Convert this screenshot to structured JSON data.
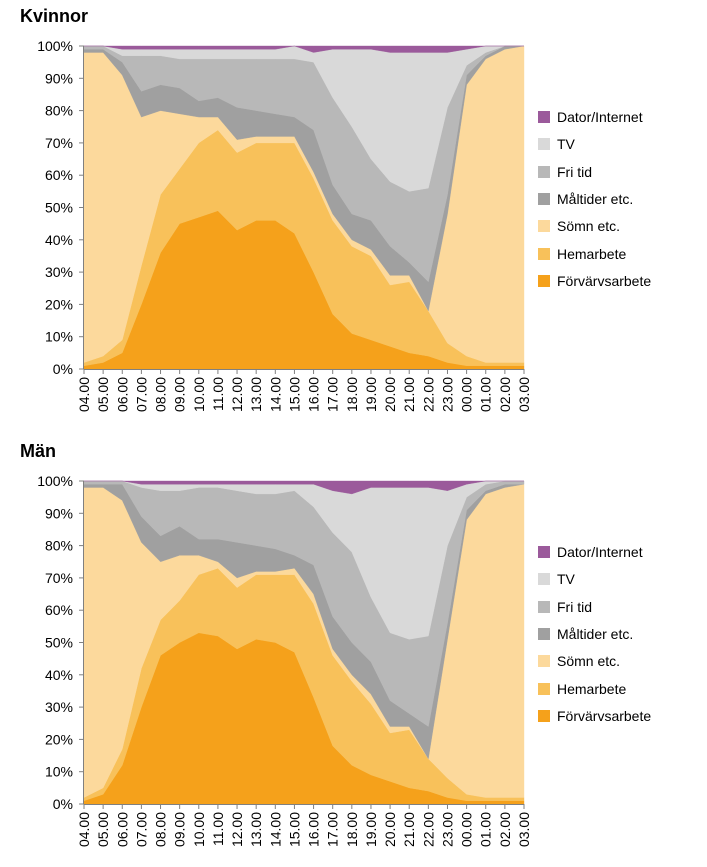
{
  "categories": [
    "Dator/Internet",
    "TV",
    "Fri tid",
    "Måltider etc.",
    "Sömn etc.",
    "Hemarbete",
    "Förvärvsarbete"
  ],
  "colors": {
    "Dator/Internet": "#9b5a9b",
    "TV": "#d9d9d9",
    "Fri tid": "#b8b8b8",
    "Måltider etc.": "#a0a0a0",
    "Sömn etc.": "#fcd99c",
    "Hemarbete": "#f8c15a",
    "Förvärvsarbete": "#f5a11b"
  },
  "chart_data": [
    {
      "type": "area",
      "stacked": true,
      "title": "Kvinnor",
      "x": [
        "04.00",
        "05.00",
        "06.00",
        "07.00",
        "08.00",
        "09.00",
        "10.00",
        "11.00",
        "12.00",
        "13.00",
        "14.00",
        "15.00",
        "16.00",
        "17.00",
        "18.00",
        "19.00",
        "20.00",
        "21.00",
        "22.00",
        "23.00",
        "00.00",
        "01.00",
        "02.00",
        "03.00"
      ],
      "ylim": [
        0,
        100
      ],
      "yticks": [
        "0%",
        "10%",
        "20%",
        "30%",
        "40%",
        "50%",
        "60%",
        "70%",
        "80%",
        "90%",
        "100%"
      ],
      "legend": "right",
      "series": [
        {
          "name": "Förvärvsarbete",
          "values": [
            1,
            2,
            5,
            20,
            36,
            45,
            47,
            49,
            43,
            46,
            46,
            42,
            30,
            17,
            11,
            9,
            7,
            5,
            4,
            2,
            1,
            1,
            1,
            1
          ]
        },
        {
          "name": "Hemarbete",
          "values": [
            1,
            2,
            4,
            12,
            18,
            17,
            23,
            25,
            24,
            24,
            24,
            28,
            29,
            29,
            27,
            26,
            19,
            22,
            14,
            6,
            3,
            1,
            1,
            1
          ]
        },
        {
          "name": "Sömn etc.",
          "values": [
            96,
            94,
            82,
            46,
            26,
            17,
            8,
            4,
            4,
            2,
            2,
            2,
            2,
            2,
            2,
            2,
            3,
            2,
            0,
            40,
            84,
            94,
            97,
            98
          ]
        },
        {
          "name": "Måltider etc.",
          "values": [
            1,
            1,
            4,
            8,
            8,
            8,
            5,
            6,
            10,
            8,
            7,
            6,
            13,
            9,
            8,
            9,
            9,
            4,
            9,
            6,
            3,
            1,
            1,
            0
          ]
        },
        {
          "name": "Fri tid",
          "values": [
            1,
            1,
            2,
            11,
            9,
            9,
            13,
            12,
            15,
            16,
            17,
            18,
            21,
            27,
            27,
            19,
            20,
            22,
            29,
            27,
            3,
            1,
            0,
            0
          ]
        },
        {
          "name": "TV",
          "values": [
            0,
            0,
            2,
            2,
            2,
            3,
            3,
            3,
            3,
            3,
            3,
            4,
            3,
            15,
            24,
            34,
            40,
            43,
            42,
            17,
            5,
            2,
            0,
            0
          ]
        },
        {
          "name": "Dator/Internet",
          "values": [
            0,
            0,
            1,
            1,
            1,
            1,
            1,
            1,
            1,
            1,
            1,
            0,
            2,
            1,
            1,
            1,
            2,
            2,
            2,
            2,
            1,
            0,
            0,
            0
          ]
        }
      ]
    },
    {
      "type": "area",
      "stacked": true,
      "title": "Män",
      "x": [
        "04.00",
        "05.00",
        "06.00",
        "07.00",
        "08.00",
        "09.00",
        "10.00",
        "11.00",
        "12.00",
        "13.00",
        "14.00",
        "15.00",
        "16.00",
        "17.00",
        "18.00",
        "19.00",
        "20.00",
        "21.00",
        "22.00",
        "23.00",
        "00.00",
        "01.00",
        "02.00",
        "03.00"
      ],
      "ylim": [
        0,
        100
      ],
      "yticks": [
        "0%",
        "10%",
        "20%",
        "30%",
        "40%",
        "50%",
        "60%",
        "70%",
        "80%",
        "90%",
        "100%"
      ],
      "legend": "right",
      "series": [
        {
          "name": "Förvärvsarbete",
          "values": [
            1,
            3,
            12,
            30,
            46,
            50,
            53,
            52,
            48,
            51,
            50,
            47,
            33,
            18,
            12,
            9,
            7,
            5,
            4,
            2,
            1,
            1,
            1,
            1
          ]
        },
        {
          "name": "Hemarbete",
          "values": [
            1,
            2,
            5,
            12,
            11,
            13,
            18,
            21,
            19,
            20,
            21,
            24,
            29,
            28,
            26,
            22,
            15,
            18,
            10,
            6,
            2,
            1,
            1,
            1
          ]
        },
        {
          "name": "Sömn etc.",
          "values": [
            96,
            93,
            77,
            39,
            18,
            14,
            6,
            2,
            3,
            1,
            1,
            2,
            3,
            2,
            2,
            3,
            2,
            1,
            0,
            43,
            85,
            94,
            96,
            97
          ]
        },
        {
          "name": "Måltider etc.",
          "values": [
            1,
            1,
            5,
            8,
            8,
            9,
            5,
            7,
            11,
            8,
            7,
            4,
            9,
            10,
            10,
            10,
            8,
            4,
            10,
            5,
            3,
            1,
            1,
            0
          ]
        },
        {
          "name": "Fri tid",
          "values": [
            1,
            1,
            1,
            9,
            14,
            11,
            16,
            16,
            16,
            16,
            17,
            20,
            18,
            26,
            28,
            20,
            21,
            23,
            28,
            24,
            4,
            2,
            1,
            1
          ]
        },
        {
          "name": "TV",
          "values": [
            0,
            0,
            0,
            1,
            2,
            2,
            1,
            1,
            2,
            3,
            3,
            2,
            7,
            13,
            18,
            34,
            45,
            47,
            46,
            17,
            4,
            1,
            0,
            0
          ]
        },
        {
          "name": "Dator/Internet",
          "values": [
            0,
            0,
            0,
            1,
            1,
            1,
            1,
            1,
            1,
            1,
            1,
            1,
            1,
            3,
            4,
            2,
            2,
            2,
            2,
            3,
            1,
            0,
            0,
            0
          ]
        }
      ]
    }
  ]
}
